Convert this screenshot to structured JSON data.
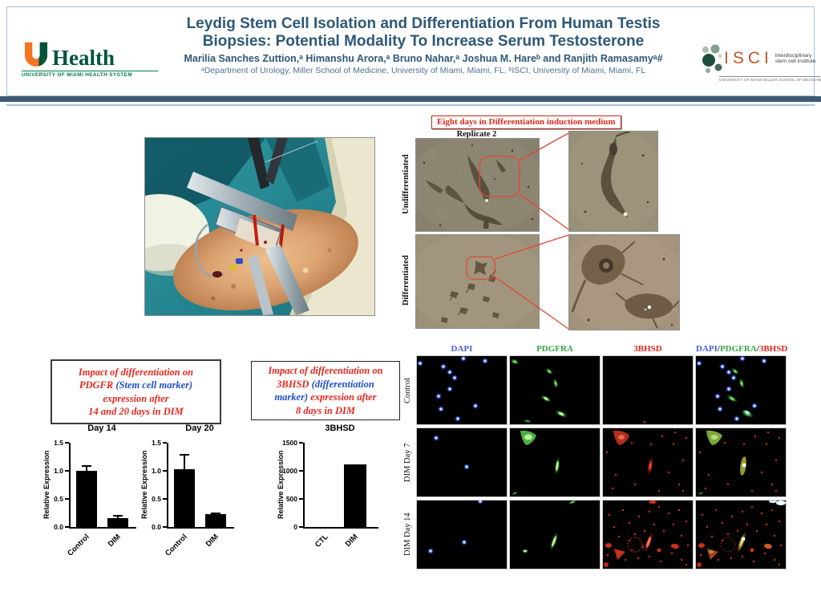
{
  "header": {
    "title_line1": "Leydig Stem Cell Isolation and Differentiation From Human Testis",
    "title_line2": "Biopsies: Potential Modality To Increase Serum Testosterone",
    "authors": "Marilia Sanches Zuttion,ᵃ Himanshu Arora,ᵃ Bruno Nahar,ᵃ Joshua M. Hareᵇ and Ranjith Ramasamyᵃ#",
    "affiliations": "ᵃDepartment of Urology, Miller School of Medicine, University of Miami, Miami, FL. ᵇISCI, University of Miami, Miami, FL",
    "uhealth": {
      "health": "Health",
      "tagline": "UNIVERSITY OF MIAMI HEALTH SYSTEM"
    },
    "isci": {
      "acronym": "ISCI",
      "line1": "interdisciplinary",
      "line2": "stem cell institute",
      "tagline": "UNIVERSITY OF MIAMI MILLER SCHOOL OF MEDICINE"
    }
  },
  "colors": {
    "title_text": "#2d5876",
    "header_bar": "#3d5a75",
    "accent_red": "#e8281e",
    "accent_blue": "#1d4fd0",
    "banner_red": "#e0281c"
  },
  "top_section": {
    "banner": "Eight days in Differentiation induction medium",
    "replicate": "Replicate 2",
    "row_label_undiff": "Undifferentiated",
    "row_label_diff": "Differentiated"
  },
  "boxes": {
    "box1": {
      "lines": [
        [
          {
            "text": "Impact of differentiation on",
            "color": "red"
          }
        ],
        [
          {
            "text": "PDGFR ",
            "color": "red"
          },
          {
            "text": "(Stem cell marker)",
            "color": "blue"
          }
        ],
        [
          {
            "text": "expression  after",
            "color": "red"
          }
        ],
        [
          {
            "text": "14 and 20 days in DIM",
            "color": "red"
          }
        ]
      ]
    },
    "box2": {
      "lines": [
        [
          {
            "text": "Impact of differentiation on",
            "color": "red"
          }
        ],
        [
          {
            "text": "3BHSD ",
            "color": "red"
          },
          {
            "text": "(differentiation",
            "color": "blue"
          }
        ],
        [
          {
            "text": "marker)",
            "color": "blue"
          },
          {
            "text": " expression  after",
            "color": "red"
          }
        ],
        [
          {
            "text": "8 days in DIM",
            "color": "red"
          }
        ]
      ]
    }
  },
  "chart_data": [
    {
      "type": "bar",
      "title": "Day 14",
      "ylabel": "Relative Expression",
      "xlabel": "",
      "ylim": [
        0,
        1.5
      ],
      "yticks": [
        [
          "0.0",
          0
        ],
        [
          "0.5",
          0.5
        ],
        [
          "1.0",
          1.0
        ],
        [
          "1.5",
          1.5
        ]
      ],
      "categories": [
        "Control",
        "DIM"
      ],
      "values": [
        1.0,
        0.16
      ],
      "errors": [
        0.09,
        0.04
      ],
      "bar_color": "#000000",
      "grid": false
    },
    {
      "type": "bar",
      "title": "Day 20",
      "ylabel": "Relative Expression",
      "xlabel": "",
      "ylim": [
        0,
        1.5
      ],
      "yticks": [
        [
          "0.0",
          0
        ],
        [
          "0.5",
          0.5
        ],
        [
          "1.0",
          1.0
        ],
        [
          "1.5",
          1.5
        ]
      ],
      "categories": [
        "Control",
        "DIM"
      ],
      "values": [
        1.03,
        0.23
      ],
      "errors": [
        0.26,
        0.02
      ],
      "bar_color": "#000000",
      "grid": false
    },
    {
      "type": "bar",
      "title": "3BHSD",
      "ylabel": "Relative Expression",
      "xlabel": "",
      "ylim": [
        0,
        1500
      ],
      "yticks": [
        [
          "0",
          0
        ],
        [
          "500",
          500
        ],
        [
          "1000",
          1000
        ],
        [
          "1500",
          1500
        ]
      ],
      "categories": [
        "CTL",
        "DIM"
      ],
      "values": [
        0,
        1120
      ],
      "errors": [
        0,
        0
      ],
      "bar_color": "#000000",
      "grid": false
    }
  ],
  "fluor": {
    "col_headers": [
      {
        "text": "DAPI",
        "color": "#4862d8"
      },
      {
        "text": "PDGFRA",
        "color": "#3aa545"
      },
      {
        "text": "3BHSD",
        "color": "#e0261c"
      }
    ],
    "merged_header": [
      {
        "text": "DAPI",
        "color": "#4862d8"
      },
      {
        "text": "/",
        "color": "#333333"
      },
      {
        "text": "PDGFRA",
        "color": "#3aa545"
      },
      {
        "text": "/",
        "color": "#333333"
      },
      {
        "text": "3BHSD",
        "color": "#e0261c"
      }
    ],
    "row_labels": [
      "Control",
      "DIM Day 7",
      "DIM Day 14"
    ]
  }
}
